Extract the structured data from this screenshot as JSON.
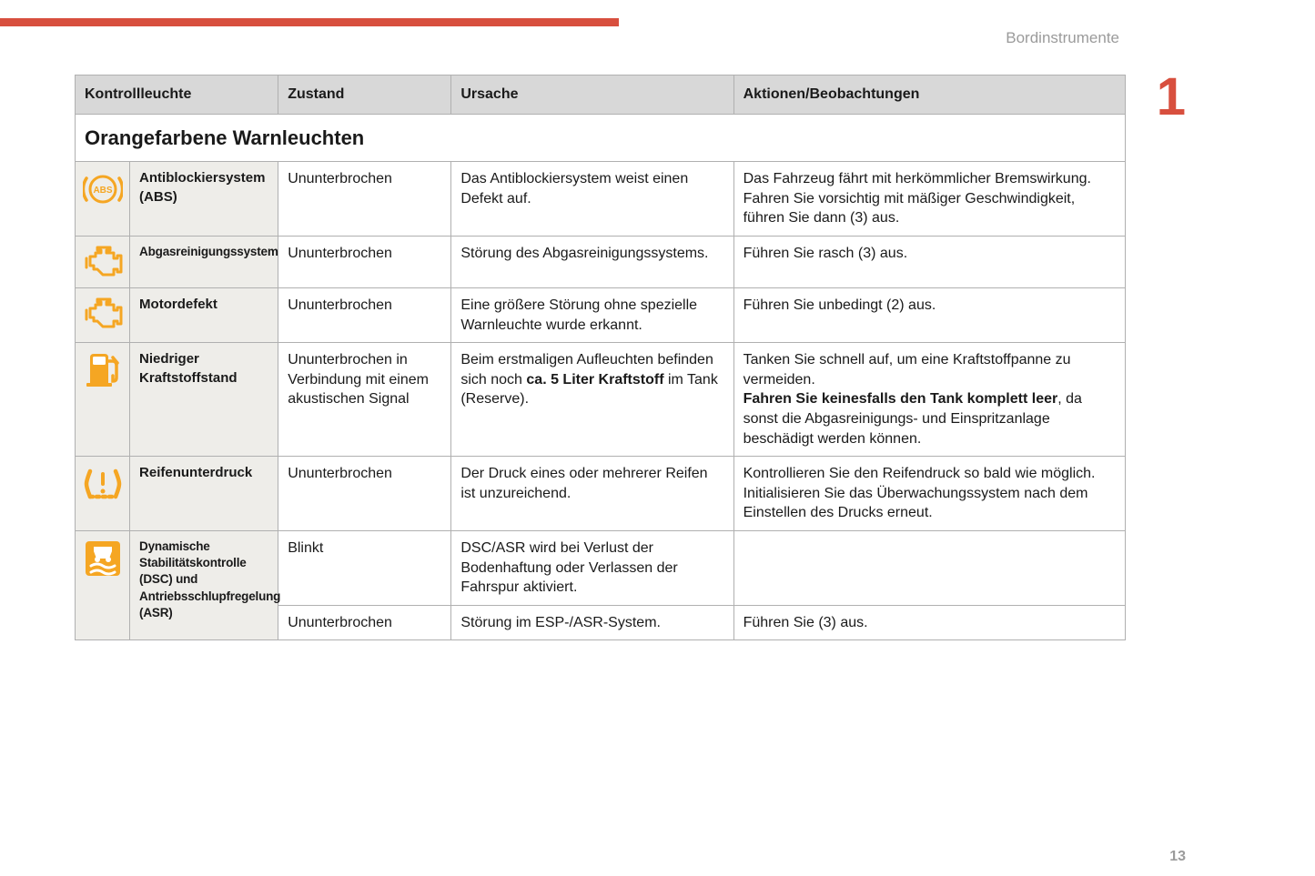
{
  "colors": {
    "accent": "#d84f3e",
    "icon_orange": "#f5a623",
    "header_bg": "#d8d8d8",
    "name_bg": "#eeede9",
    "border": "#b0b0b0",
    "muted_text": "#9b9b9b"
  },
  "header_label": "Bordinstrumente",
  "chapter_number": "1",
  "page_number": "13",
  "columns": {
    "c1": "Kontrollleuchte",
    "c2": "Zustand",
    "c3": "Ursache",
    "c4": "Aktionen/Beobachtungen"
  },
  "section_title": "Orangefarbene Warnleuchten",
  "rows": [
    {
      "icon": "abs",
      "name": "Antiblockiersystem (ABS)",
      "state": "Ununterbrochen",
      "cause": "Das Antiblockiersystem weist einen Defekt auf.",
      "actions": "Das Fahrzeug fährt mit herkömmlicher Bremswirkung. Fahren Sie vorsichtig mit mäßiger Geschwindigkeit, führen Sie dann (3) aus."
    },
    {
      "icon": "engine",
      "name": "Abgasreinigungssystem",
      "name_condensed": true,
      "state": "Ununterbrochen",
      "cause": "Störung des Abgasreinigungssystems.",
      "actions": "Führen Sie rasch (3) aus."
    },
    {
      "icon": "engine",
      "name": "Motordefekt",
      "state": "Ununterbrochen",
      "cause": "Eine größere Störung ohne spezielle Warnleuchte wurde erkannt.",
      "actions": "Führen Sie unbedingt (2) aus."
    },
    {
      "icon": "fuel",
      "name": "Niedriger Kraftstoffstand",
      "state": "Ununterbrochen in Verbindung mit einem akustischen Signal",
      "cause_html": "Beim erstmaligen Aufleuchten befinden sich noch <b>ca. 5 Liter Kraftstoff</b> im Tank (Reserve).",
      "actions_html": "Tanken Sie schnell auf, um eine Kraftstoffpanne zu vermeiden.<br><b>Fahren Sie keinesfalls den Tank komplett leer</b>, da sonst die Abgasreinigungs- und Einspritzanlage beschädigt werden können."
    },
    {
      "icon": "tire",
      "name": "Reifenunterdruck",
      "state": "Ununterbrochen",
      "cause": "Der Druck eines oder mehrerer Reifen ist unzureichend.",
      "actions": "Kontrollieren Sie den Reifendruck so bald wie möglich.\nInitialisieren Sie das Überwachungssystem nach dem Einstellen des Drucks erneut."
    },
    {
      "icon": "dsc",
      "name": "Dynamische Stabilitätskontrolle (DSC) und Antriebsschlupfregelung (ASR)",
      "name_condensed": true,
      "subrows": [
        {
          "state": "Blinkt",
          "cause": "DSC/ASR wird bei Verlust der Bodenhaftung oder Verlassen der Fahrspur aktiviert.",
          "actions": ""
        },
        {
          "state": "Ununterbrochen",
          "cause": "Störung im ESP-/ASR-System.",
          "actions": "Führen Sie (3) aus."
        }
      ]
    }
  ]
}
